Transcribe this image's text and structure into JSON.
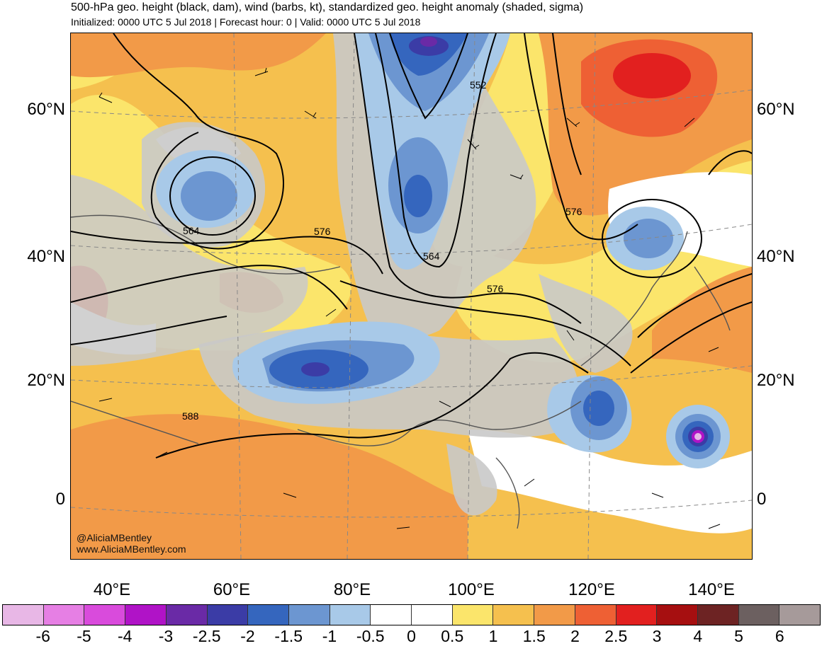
{
  "title": "500-hPa geo. height (black, dam), wind (barbs, kt), standardized geo. height anomaly (shaded, sigma)",
  "subtitle": "Initialized: 0000 UTC 5 Jul 2018 | Forecast hour: 0 | Valid: 0000 UTC 5 Jul 2018",
  "map": {
    "lat_labels": [
      "60°N",
      "40°N",
      "20°N",
      "0"
    ],
    "lon_labels": [
      "40°E",
      "60°E",
      "80°E",
      "100°E",
      "120°E",
      "140°E"
    ],
    "contour_labels": [
      "552",
      "564",
      "576",
      "564",
      "576",
      "576",
      "588"
    ],
    "credits": [
      "@AliciaMBentley",
      "www.AliciaMBentley.com"
    ]
  },
  "colorbar": {
    "colors": [
      "#e8b7e6",
      "#e67fe4",
      "#d94bdc",
      "#b013c7",
      "#6a2aa6",
      "#3b3ca6",
      "#3566be",
      "#6c96d1",
      "#a8c9e8",
      "#ffffff",
      "#ffffff",
      "#fbe56b",
      "#f5c04e",
      "#f29a48",
      "#ee6034",
      "#e2201f",
      "#a60f10",
      "#6d2323",
      "#6c6060",
      "#a69a9a"
    ],
    "labels": [
      "-6",
      "-5",
      "-4",
      "-3",
      "-2.5",
      "-2",
      "-1.5",
      "-1",
      "-0.5",
      "0",
      "0.5",
      "1",
      "1.5",
      "2",
      "2.5",
      "3",
      "4",
      "5",
      "6"
    ]
  }
}
